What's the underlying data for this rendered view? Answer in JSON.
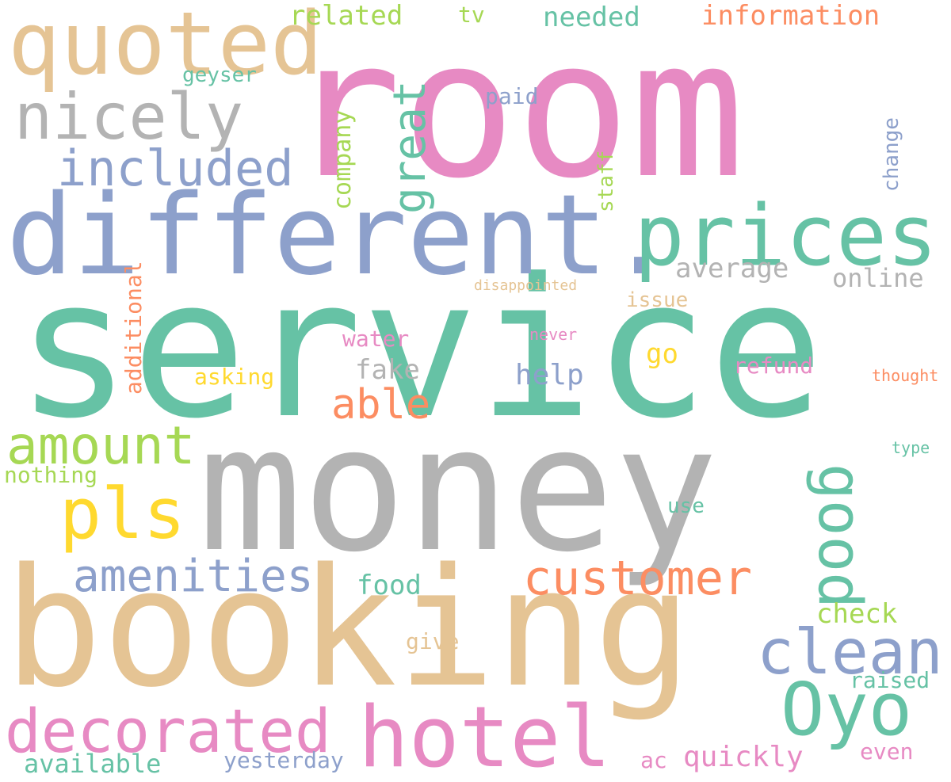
{
  "words": [
    {
      "text": "room",
      "color": "#e78ac3"
    },
    {
      "text": "service",
      "color": "#66c2a5"
    },
    {
      "text": "money",
      "color": "#b3b3b3"
    },
    {
      "text": "booking",
      "color": "#e5c494"
    },
    {
      "text": "different.",
      "color": "#8da0cb"
    },
    {
      "text": "quoted",
      "color": "#e5c494"
    },
    {
      "text": "prices",
      "color": "#66c2a5"
    },
    {
      "text": "nicely",
      "color": "#b3b3b3"
    },
    {
      "text": "included",
      "color": "#8da0cb"
    },
    {
      "text": "hotel",
      "color": "#e78ac3"
    },
    {
      "text": "decorated",
      "color": "#e78ac3"
    },
    {
      "text": "Oyo",
      "color": "#66c2a5"
    },
    {
      "text": "clean",
      "color": "#8da0cb"
    },
    {
      "text": "customer",
      "color": "#fc8d62"
    },
    {
      "text": "pls",
      "color": "#ffd92f"
    },
    {
      "text": "amount",
      "color": "#a6d854"
    },
    {
      "text": "amenities",
      "color": "#8da0cb"
    },
    {
      "text": "good",
      "color": "#66c2a5"
    },
    {
      "text": "great",
      "color": "#66c2a5"
    },
    {
      "text": "able",
      "color": "#fc8d62"
    },
    {
      "text": "information",
      "color": "#fc8d62"
    },
    {
      "text": "related",
      "color": "#a6d854"
    },
    {
      "text": "tv",
      "color": "#a6d854"
    },
    {
      "text": "needed",
      "color": "#66c2a5"
    },
    {
      "text": "geyser",
      "color": "#66c2a5"
    },
    {
      "text": "paid",
      "color": "#8da0cb"
    },
    {
      "text": "company",
      "color": "#a6d854"
    },
    {
      "text": "staff",
      "color": "#a6d854"
    },
    {
      "text": "change",
      "color": "#8da0cb"
    },
    {
      "text": "average",
      "color": "#b3b3b3"
    },
    {
      "text": "online",
      "color": "#b3b3b3"
    },
    {
      "text": "disappointed",
      "color": "#e5c494"
    },
    {
      "text": "issue",
      "color": "#e5c494"
    },
    {
      "text": "additional",
      "color": "#fc8d62"
    },
    {
      "text": "water",
      "color": "#e78ac3"
    },
    {
      "text": "never",
      "color": "#e78ac3"
    },
    {
      "text": "fake",
      "color": "#b3b3b3"
    },
    {
      "text": "go",
      "color": "#ffd92f"
    },
    {
      "text": "help",
      "color": "#8da0cb"
    },
    {
      "text": "refund",
      "color": "#e78ac3"
    },
    {
      "text": "thought",
      "color": "#fc8d62"
    },
    {
      "text": "asking",
      "color": "#ffd92f"
    },
    {
      "text": "type",
      "color": "#66c2a5"
    },
    {
      "text": "nothing",
      "color": "#a6d854"
    },
    {
      "text": "use",
      "color": "#66c2a5"
    },
    {
      "text": "food",
      "color": "#66c2a5"
    },
    {
      "text": "check",
      "color": "#a6d854"
    },
    {
      "text": "give",
      "color": "#e5c494"
    },
    {
      "text": "raised",
      "color": "#66c2a5"
    },
    {
      "text": "available",
      "color": "#66c2a5"
    },
    {
      "text": "yesterday",
      "color": "#8da0cb"
    },
    {
      "text": "ac",
      "color": "#e78ac3"
    },
    {
      "text": "quickly",
      "color": "#e78ac3"
    },
    {
      "text": "even",
      "color": "#e78ac3"
    }
  ]
}
